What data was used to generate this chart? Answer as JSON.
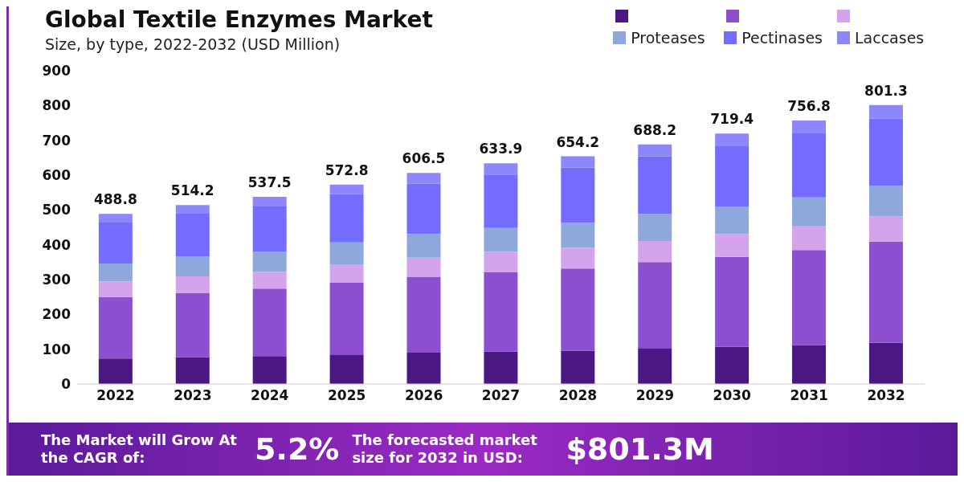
{
  "chart_data": {
    "type": "bar",
    "title": "Global Textile Enzymes Market",
    "subtitle": "Size, by type, 2022-2032 (USD Million)",
    "stacked": true,
    "categories": [
      "2022",
      "2023",
      "2024",
      "2025",
      "2026",
      "2027",
      "2028",
      "2029",
      "2030",
      "2031",
      "2032"
    ],
    "series": [
      {
        "color": "#4b1782",
        "values": [
          73,
          77,
          80,
          85,
          90,
          93,
          96,
          103,
          107,
          112,
          118
        ]
      },
      {
        "color": "#8b4fcf",
        "values": [
          177,
          184,
          194,
          206,
          218,
          228,
          236,
          247,
          258,
          273,
          291
        ]
      },
      {
        "color": "#d3a4ec",
        "values": [
          44,
          48,
          48,
          53,
          55,
          59,
          59,
          61,
          66,
          68,
          73
        ]
      },
      {
        "name": "Proteases",
        "color": "#8fa8dc",
        "values": [
          52,
          57,
          59,
          63,
          68,
          68,
          72,
          77,
          79,
          83,
          87
        ]
      },
      {
        "name": "Pectinases",
        "color": "#746cff",
        "values": [
          118,
          123,
          129,
          138,
          145,
          154,
          159,
          166,
          173,
          184,
          193
        ]
      },
      {
        "name": "Laccases",
        "color": "#8e87fb",
        "values": [
          24.8,
          25.2,
          27.5,
          27.8,
          30.5,
          31.9,
          32.2,
          34.2,
          36.4,
          36.8,
          39.3
        ]
      }
    ],
    "totals": [
      "488.8",
      "514.2",
      "537.5",
      "572.8",
      "606.5",
      "633.9",
      "654.2",
      "688.2",
      "719.4",
      "756.8",
      "801.3"
    ],
    "ylim": [
      0,
      900
    ],
    "yticks": [
      0,
      100,
      200,
      300,
      400,
      500,
      600,
      700,
      800,
      900
    ],
    "grid": false,
    "legend": "top right",
    "annotations": [
      "The Market will Grow At the CAGR of:",
      "5.2%",
      "The forecasted market size for 2032 in USD:",
      "$801.3M"
    ]
  }
}
